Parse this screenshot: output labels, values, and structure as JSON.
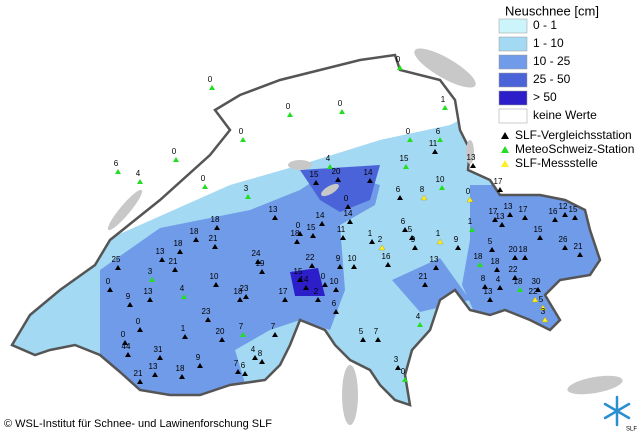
{
  "legend": {
    "title": "Neuschnee [cm]",
    "classes": [
      {
        "label": "0 - 1",
        "color": "#ccf5fb"
      },
      {
        "label": "1 - 10",
        "color": "#a3d9f3"
      },
      {
        "label": "10 - 25",
        "color": "#6f9be8"
      },
      {
        "label": "25 - 50",
        "color": "#4a63d8"
      },
      {
        "label": "> 50",
        "color": "#2c1fc9"
      },
      {
        "label": "keine Werte",
        "color": "#ffffff"
      }
    ],
    "stations": [
      {
        "label": "SLF-Vergleichsstation",
        "color": "#000000"
      },
      {
        "label": "MeteoSchweiz-Station",
        "color": "#22dd22"
      },
      {
        "label": "SLF-Messstelle",
        "color": "#ffee22"
      }
    ]
  },
  "stations": [
    "0",
    "0",
    "0",
    "0",
    "1",
    "0",
    "0",
    "6",
    "4",
    "0",
    "3",
    "4",
    "0",
    "6",
    "11",
    "15",
    "13",
    "10",
    "6",
    "8",
    "0",
    "17",
    "15",
    "20",
    "14",
    "0",
    "14",
    "14",
    "13",
    "18",
    "18",
    "21",
    "0",
    "18",
    "15",
    "11",
    "1",
    "2",
    "6",
    "5",
    "9",
    "1",
    "9",
    "1",
    "5",
    "13",
    "13",
    "17",
    "17",
    "16",
    "12",
    "15",
    "15",
    "26",
    "21",
    "18",
    "20",
    "18",
    "18",
    "22",
    "4",
    "8",
    "13",
    "18",
    "30",
    "22",
    "5",
    "3",
    "13",
    "21",
    "16",
    "9",
    "10",
    "10",
    "6",
    "2",
    "0",
    "22",
    "15",
    "14",
    "17",
    "24",
    "19",
    "23",
    "18",
    "10",
    "21",
    "13",
    "18",
    "3",
    "4",
    "23",
    "1",
    "20",
    "7",
    "7",
    "4",
    "8",
    "7",
    "6",
    "9",
    "18",
    "31",
    "13",
    "0",
    "0",
    "44",
    "21",
    "25",
    "0",
    "9",
    "13",
    "5",
    "7",
    "3",
    "4",
    "0"
  ],
  "copyright": "© WSL-Institut für Schnee- und Lawinenforschung SLF",
  "logo_text": "SLF"
}
